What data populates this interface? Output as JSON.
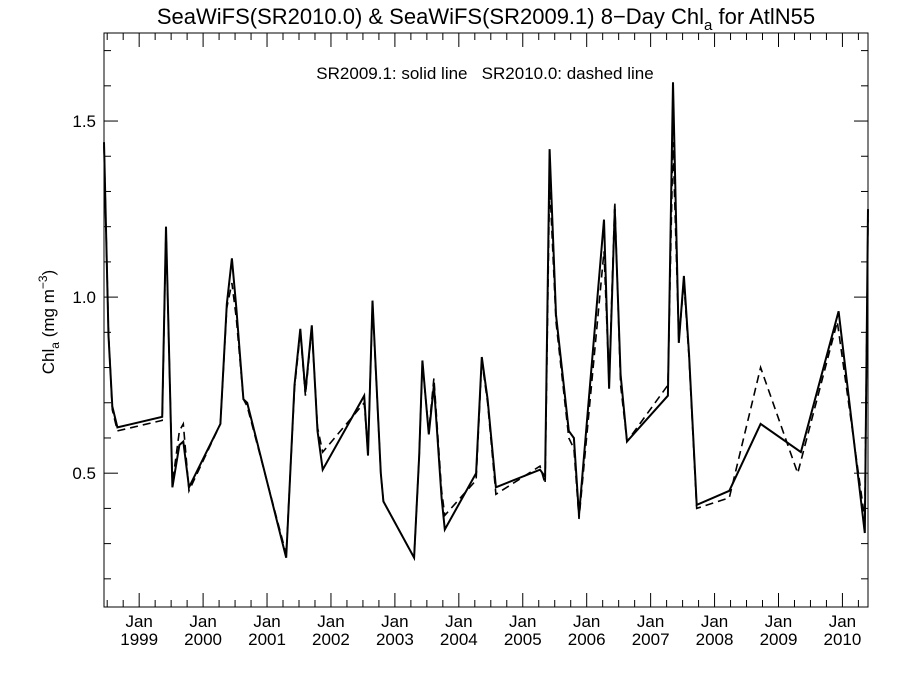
{
  "chart_data": {
    "type": "line",
    "title": {
      "prefix": "SeaWiFS(SR2010.0) & SeaWiFS(SR2009.1) 8−Day Chl",
      "subscript": "a",
      "suffix": " for AtlN55"
    },
    "ylabel": {
      "prefix": "Chl",
      "subscript": "a",
      "unit_prefix": " (mg m",
      "superscript": "−3",
      "unit_suffix": ")"
    },
    "legend_note": "SR2009.1: solid line   SR2010.0: dashed line",
    "xlim": [
      1998.45,
      2010.4
    ],
    "ylim": [
      0.12,
      1.75
    ],
    "y_ticks": [
      0.5,
      1.0,
      1.5
    ],
    "y_tick_labels": [
      "0.5",
      "1.0",
      "1.5"
    ],
    "x_ticks": [
      {
        "month": "Jan",
        "year": "1999",
        "value": 1999.0
      },
      {
        "month": "Jan",
        "year": "2000",
        "value": 2000.0
      },
      {
        "month": "Jan",
        "year": "2001",
        "value": 2001.0
      },
      {
        "month": "Jan",
        "year": "2002",
        "value": 2002.0
      },
      {
        "month": "Jan",
        "year": "2003",
        "value": 2003.0
      },
      {
        "month": "Jan",
        "year": "2004",
        "value": 2004.0
      },
      {
        "month": "Jan",
        "year": "2005",
        "value": 2005.0
      },
      {
        "month": "Jan",
        "year": "2006",
        "value": 2006.0
      },
      {
        "month": "Jan",
        "year": "2007",
        "value": 2007.0
      },
      {
        "month": "Jan",
        "year": "2008",
        "value": 2008.0
      },
      {
        "month": "Jan",
        "year": "2009",
        "value": 2009.0
      },
      {
        "month": "Jan",
        "year": "2010",
        "value": 2010.0
      }
    ],
    "series": [
      {
        "name": "SR2009.1",
        "style": "solid",
        "points": [
          [
            1998.45,
            1.44
          ],
          [
            1998.52,
            0.89
          ],
          [
            1998.58,
            0.69
          ],
          [
            1998.66,
            0.63
          ],
          [
            1999.36,
            0.66
          ],
          [
            1999.42,
            1.2
          ],
          [
            1999.52,
            0.46
          ],
          [
            1999.63,
            0.58
          ],
          [
            1999.69,
            0.59
          ],
          [
            1999.78,
            0.46
          ],
          [
            2000.27,
            0.64
          ],
          [
            2000.37,
            0.98
          ],
          [
            2000.45,
            1.11
          ],
          [
            2000.52,
            0.97
          ],
          [
            2000.63,
            0.71
          ],
          [
            2000.69,
            0.7
          ],
          [
            2001.3,
            0.26
          ],
          [
            2001.43,
            0.75
          ],
          [
            2001.52,
            0.91
          ],
          [
            2001.6,
            0.73
          ],
          [
            2001.7,
            0.92
          ],
          [
            2001.79,
            0.62
          ],
          [
            2001.87,
            0.51
          ],
          [
            2002.52,
            0.72
          ],
          [
            2002.58,
            0.55
          ],
          [
            2002.65,
            0.99
          ],
          [
            2002.78,
            0.5
          ],
          [
            2002.82,
            0.42
          ],
          [
            2003.3,
            0.26
          ],
          [
            2003.38,
            0.55
          ],
          [
            2003.43,
            0.82
          ],
          [
            2003.53,
            0.61
          ],
          [
            2003.61,
            0.75
          ],
          [
            2003.73,
            0.43
          ],
          [
            2003.78,
            0.34
          ],
          [
            2004.27,
            0.5
          ],
          [
            2004.36,
            0.83
          ],
          [
            2004.45,
            0.71
          ],
          [
            2004.58,
            0.46
          ],
          [
            2005.27,
            0.51
          ],
          [
            2005.35,
            0.49
          ],
          [
            2005.42,
            1.42
          ],
          [
            2005.52,
            0.95
          ],
          [
            2005.72,
            0.62
          ],
          [
            2005.8,
            0.6
          ],
          [
            2005.88,
            0.38
          ],
          [
            2006.27,
            1.22
          ],
          [
            2006.35,
            0.74
          ],
          [
            2006.44,
            1.25
          ],
          [
            2006.53,
            0.78
          ],
          [
            2006.63,
            0.59
          ],
          [
            2007.27,
            0.72
          ],
          [
            2007.35,
            1.61
          ],
          [
            2007.44,
            0.87
          ],
          [
            2007.52,
            1.06
          ],
          [
            2007.6,
            0.84
          ],
          [
            2007.72,
            0.41
          ],
          [
            2008.23,
            0.45
          ],
          [
            2008.72,
            0.64
          ],
          [
            2009.35,
            0.56
          ],
          [
            2009.94,
            0.96
          ],
          [
            2010.35,
            0.33
          ],
          [
            2010.4,
            1.25
          ]
        ]
      },
      {
        "name": "SR2010.0",
        "style": "dashed",
        "points": [
          [
            1998.45,
            1.43
          ],
          [
            1998.52,
            0.9
          ],
          [
            1998.58,
            0.68
          ],
          [
            1998.66,
            0.62
          ],
          [
            1999.36,
            0.65
          ],
          [
            1999.42,
            1.19
          ],
          [
            1999.52,
            0.47
          ],
          [
            1999.63,
            0.62
          ],
          [
            1999.69,
            0.64
          ],
          [
            1999.78,
            0.45
          ],
          [
            2000.27,
            0.64
          ],
          [
            2000.37,
            0.97
          ],
          [
            2000.45,
            1.04
          ],
          [
            2000.52,
            0.94
          ],
          [
            2000.63,
            0.71
          ],
          [
            2000.69,
            0.69
          ],
          [
            2001.3,
            0.27
          ],
          [
            2001.43,
            0.74
          ],
          [
            2001.52,
            0.9
          ],
          [
            2001.6,
            0.72
          ],
          [
            2001.7,
            0.91
          ],
          [
            2001.79,
            0.63
          ],
          [
            2001.87,
            0.56
          ],
          [
            2002.52,
            0.7
          ],
          [
            2002.58,
            0.56
          ],
          [
            2002.65,
            0.98
          ],
          [
            2002.78,
            0.5
          ],
          [
            2002.82,
            0.42
          ],
          [
            2003.3,
            0.26
          ],
          [
            2003.38,
            0.55
          ],
          [
            2003.43,
            0.81
          ],
          [
            2003.53,
            0.62
          ],
          [
            2003.61,
            0.77
          ],
          [
            2003.73,
            0.45
          ],
          [
            2003.78,
            0.38
          ],
          [
            2004.27,
            0.48
          ],
          [
            2004.36,
            0.82
          ],
          [
            2004.45,
            0.7
          ],
          [
            2004.58,
            0.44
          ],
          [
            2005.27,
            0.52
          ],
          [
            2005.35,
            0.47
          ],
          [
            2005.42,
            1.33
          ],
          [
            2005.52,
            0.93
          ],
          [
            2005.72,
            0.6
          ],
          [
            2005.8,
            0.57
          ],
          [
            2005.88,
            0.37
          ],
          [
            2006.27,
            1.13
          ],
          [
            2006.35,
            0.76
          ],
          [
            2006.44,
            1.27
          ],
          [
            2006.53,
            0.75
          ],
          [
            2006.63,
            0.59
          ],
          [
            2007.27,
            0.75
          ],
          [
            2007.35,
            1.44
          ],
          [
            2007.44,
            0.88
          ],
          [
            2007.52,
            1.04
          ],
          [
            2007.6,
            0.83
          ],
          [
            2007.72,
            0.4
          ],
          [
            2008.23,
            0.43
          ],
          [
            2008.72,
            0.8
          ],
          [
            2009.3,
            0.5
          ],
          [
            2009.92,
            0.93
          ],
          [
            2010.35,
            0.37
          ],
          [
            2010.4,
            1.22
          ]
        ]
      }
    ],
    "grid": false,
    "colors": {
      "line": "#000000",
      "background": "#ffffff"
    }
  }
}
